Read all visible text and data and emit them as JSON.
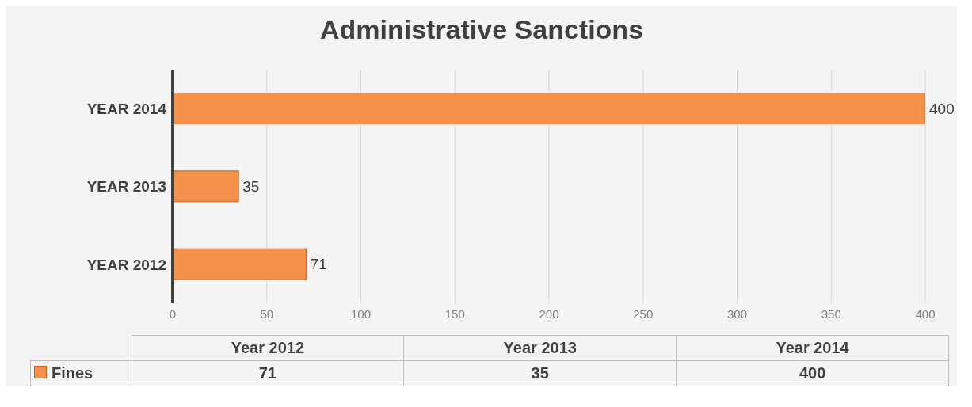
{
  "chart_data": {
    "type": "bar",
    "orientation": "horizontal",
    "title": "Administrative Sanctions",
    "categories": [
      "YEAR 2014",
      "YEAR 2013",
      "YEAR 2012"
    ],
    "series": [
      {
        "name": "Fines",
        "color": "#f4914a",
        "values": [
          400,
          35,
          71
        ]
      }
    ],
    "xlim": [
      0,
      400
    ],
    "xticks": [
      0,
      50,
      100,
      150,
      200,
      250,
      300,
      350,
      400
    ],
    "grid": "x",
    "data_labels": true,
    "annotations": [
      "Year 2012",
      "Year 2013",
      "Year 2014",
      "71",
      "35",
      "400"
    ]
  }
}
